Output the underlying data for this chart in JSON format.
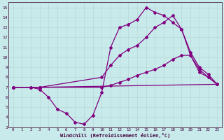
{
  "background_color": "#c8eaea",
  "line_color": "#800080",
  "grid_color": "#b8d8d8",
  "xlabel": "Windchill (Refroidissement éolien,°C)",
  "xlim": [
    -0.5,
    23.5
  ],
  "ylim": [
    3,
    15.5
  ],
  "xticks": [
    0,
    1,
    2,
    3,
    4,
    5,
    6,
    7,
    8,
    9,
    10,
    11,
    12,
    13,
    14,
    15,
    16,
    17,
    18,
    19,
    20,
    21,
    22,
    23
  ],
  "yticks": [
    3,
    4,
    5,
    6,
    7,
    8,
    9,
    10,
    11,
    12,
    13,
    14,
    15
  ],
  "lines": [
    {
      "x": [
        0,
        2,
        3,
        23
      ],
      "y": [
        7,
        7,
        7,
        7.3
      ],
      "markers": [
        [
          0,
          7
        ],
        [
          2,
          7
        ],
        [
          3,
          7
        ],
        [
          23,
          7.3
        ]
      ]
    },
    {
      "x": [
        0,
        2,
        3,
        4,
        5,
        6,
        7,
        8,
        9,
        10,
        11,
        12,
        13,
        14,
        15,
        16,
        17,
        18,
        19,
        20,
        21,
        22,
        23
      ],
      "y": [
        7,
        7,
        6.8,
        6.0,
        4.8,
        4.4,
        3.5,
        3.3,
        4.2,
        6.5,
        11.0,
        13.0,
        13.3,
        13.8,
        15.0,
        14.5,
        14.2,
        13.5,
        12.8,
        10.2,
        8.8,
        8.0,
        7.3
      ],
      "markers": [
        [
          0,
          7
        ],
        [
          2,
          7
        ],
        [
          3,
          6.8
        ],
        [
          4,
          6.0
        ],
        [
          5,
          4.8
        ],
        [
          6,
          4.4
        ],
        [
          7,
          3.5
        ],
        [
          8,
          3.3
        ],
        [
          9,
          4.2
        ],
        [
          10,
          6.5
        ],
        [
          11,
          11.0
        ],
        [
          12,
          13.0
        ],
        [
          13,
          13.3
        ],
        [
          14,
          13.8
        ],
        [
          15,
          15.0
        ],
        [
          16,
          14.5
        ],
        [
          17,
          14.2
        ],
        [
          18,
          13.5
        ],
        [
          19,
          12.8
        ],
        [
          20,
          10.2
        ],
        [
          21,
          8.8
        ],
        [
          22,
          8.0
        ],
        [
          23,
          7.3
        ]
      ]
    },
    {
      "x": [
        0,
        3,
        10,
        11,
        12,
        13,
        14,
        15,
        16,
        17,
        18,
        19,
        20,
        21,
        22,
        23
      ],
      "y": [
        7,
        7,
        8.0,
        9.2,
        10.2,
        10.8,
        11.2,
        12.0,
        13.0,
        13.5,
        14.2,
        12.8,
        10.5,
        9.0,
        8.3,
        7.3
      ],
      "markers": [
        [
          0,
          7
        ],
        [
          3,
          7
        ],
        [
          10,
          8.0
        ],
        [
          11,
          9.2
        ],
        [
          12,
          10.2
        ],
        [
          13,
          10.8
        ],
        [
          14,
          11.2
        ],
        [
          15,
          12.0
        ],
        [
          16,
          13.0
        ],
        [
          17,
          13.5
        ],
        [
          18,
          14.2
        ],
        [
          19,
          12.8
        ],
        [
          20,
          10.5
        ],
        [
          21,
          9.0
        ],
        [
          22,
          8.3
        ],
        [
          23,
          7.3
        ]
      ]
    },
    {
      "x": [
        0,
        3,
        10,
        11,
        12,
        13,
        14,
        15,
        16,
        17,
        18,
        19,
        20,
        21,
        22,
        23
      ],
      "y": [
        7,
        7,
        7.0,
        7.2,
        7.5,
        7.8,
        8.2,
        8.5,
        8.8,
        9.2,
        9.8,
        10.2,
        10.2,
        8.5,
        8.0,
        7.3
      ],
      "markers": [
        [
          0,
          7
        ],
        [
          3,
          7
        ],
        [
          10,
          7.0
        ],
        [
          11,
          7.2
        ],
        [
          12,
          7.5
        ],
        [
          13,
          7.8
        ],
        [
          14,
          8.2
        ],
        [
          15,
          8.5
        ],
        [
          16,
          8.8
        ],
        [
          17,
          9.2
        ],
        [
          18,
          9.8
        ],
        [
          19,
          10.2
        ],
        [
          20,
          10.2
        ],
        [
          21,
          8.5
        ],
        [
          22,
          8.0
        ],
        [
          23,
          7.3
        ]
      ]
    }
  ]
}
